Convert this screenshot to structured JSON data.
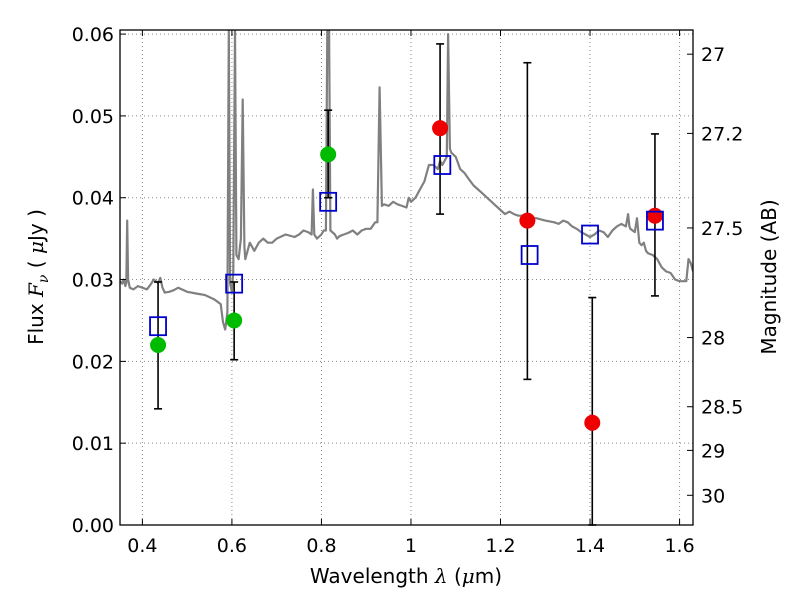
{
  "chart_data": {
    "type": "scatter",
    "xlabel": "Wavelength  λ (μm)",
    "xlabel_parts": {
      "pre": "Wavelength  ",
      "sym": "λ",
      "mid": " (",
      "unit_sym": "μ",
      "post": "m)"
    },
    "ylabel": "Flux  F_ν  ( μJy )",
    "ylabel_parts": {
      "pre": "Flux  ",
      "sym": "F",
      "sub": "ν",
      "mid": "  ( ",
      "unit_sym": "μ",
      "post": "Jy )"
    },
    "y2label": "Magnitude (AB)",
    "xlim": [
      0.35,
      1.63
    ],
    "ylim": [
      0.0,
      0.0605
    ],
    "x_ticks": [
      0.4,
      0.6,
      0.8,
      1.0,
      1.2,
      1.4,
      1.6
    ],
    "x_tick_labels": [
      "0.4",
      "0.6",
      "0.8",
      "1",
      "1.2",
      "1.4",
      "1.6"
    ],
    "y_ticks": [
      0.0,
      0.01,
      0.02,
      0.03,
      0.04,
      0.05,
      0.06
    ],
    "y_tick_labels": [
      "0.00",
      "0.01",
      "0.02",
      "0.03",
      "0.04",
      "0.05",
      "0.06"
    ],
    "y2_ticks": [
      27,
      27.2,
      27.5,
      28,
      28.5,
      29,
      30
    ],
    "y2_tick_labels": [
      "27",
      "27.2",
      "27.5",
      "28",
      "28.5",
      "29",
      "30"
    ],
    "grid": true,
    "colors": {
      "sed_line": "#808080",
      "observed_optical": "#00bb00",
      "observed_nir": "#ee0000",
      "model": "#0000cc",
      "errorbar": "#000000",
      "grid": "#888888"
    },
    "series": [
      {
        "kind": "line",
        "points": [
          [
            0.35,
            0.0298
          ],
          [
            0.355,
            0.0295
          ],
          [
            0.358,
            0.03
          ],
          [
            0.36,
            0.0296
          ],
          [
            0.362,
            0.0292
          ],
          [
            0.364,
            0.0296
          ],
          [
            0.366,
            0.0372
          ],
          [
            0.368,
            0.03
          ],
          [
            0.372,
            0.029
          ],
          [
            0.38,
            0.0288
          ],
          [
            0.39,
            0.0292
          ],
          [
            0.4,
            0.029
          ],
          [
            0.41,
            0.0288
          ],
          [
            0.42,
            0.0295
          ],
          [
            0.425,
            0.03
          ],
          [
            0.43,
            0.0298
          ],
          [
            0.435,
            0.0296
          ],
          [
            0.44,
            0.0302
          ],
          [
            0.445,
            0.029
          ],
          [
            0.45,
            0.0284
          ],
          [
            0.46,
            0.0285
          ],
          [
            0.47,
            0.0287
          ],
          [
            0.48,
            0.029
          ],
          [
            0.5,
            0.0285
          ],
          [
            0.52,
            0.0283
          ],
          [
            0.54,
            0.0281
          ],
          [
            0.56,
            0.0276
          ],
          [
            0.575,
            0.027
          ],
          [
            0.58,
            0.0248
          ],
          [
            0.585,
            0.0239
          ],
          [
            0.59,
            0.026
          ],
          [
            0.593,
            0.0605
          ],
          [
            0.596,
            0.0295
          ],
          [
            0.6,
            0.0285
          ],
          [
            0.603,
            0.031
          ],
          [
            0.607,
            0.0605
          ],
          [
            0.61,
            0.033
          ],
          [
            0.615,
            0.0325
          ],
          [
            0.62,
            0.035
          ],
          [
            0.624,
            0.052
          ],
          [
            0.628,
            0.034
          ],
          [
            0.63,
            0.0325
          ],
          [
            0.64,
            0.0345
          ],
          [
            0.65,
            0.0335
          ],
          [
            0.66,
            0.0345
          ],
          [
            0.67,
            0.035
          ],
          [
            0.68,
            0.0345
          ],
          [
            0.69,
            0.0345
          ],
          [
            0.7,
            0.035
          ],
          [
            0.72,
            0.0355
          ],
          [
            0.74,
            0.0352
          ],
          [
            0.75,
            0.0355
          ],
          [
            0.76,
            0.036
          ],
          [
            0.77,
            0.0358
          ],
          [
            0.778,
            0.0355
          ],
          [
            0.781,
            0.041
          ],
          [
            0.784,
            0.0355
          ],
          [
            0.79,
            0.035
          ],
          [
            0.8,
            0.0355
          ],
          [
            0.805,
            0.036
          ],
          [
            0.81,
            0.036
          ],
          [
            0.813,
            0.0605
          ],
          [
            0.817,
            0.0605
          ],
          [
            0.82,
            0.036
          ],
          [
            0.83,
            0.0355
          ],
          [
            0.835,
            0.035
          ],
          [
            0.84,
            0.0353
          ],
          [
            0.85,
            0.0355
          ],
          [
            0.86,
            0.0357
          ],
          [
            0.87,
            0.036
          ],
          [
            0.88,
            0.0355
          ],
          [
            0.89,
            0.036
          ],
          [
            0.9,
            0.0362
          ],
          [
            0.91,
            0.0362
          ],
          [
            0.92,
            0.037
          ],
          [
            0.925,
            0.037
          ],
          [
            0.93,
            0.0535
          ],
          [
            0.935,
            0.039
          ],
          [
            0.94,
            0.0392
          ],
          [
            0.95,
            0.039
          ],
          [
            0.96,
            0.0395
          ],
          [
            0.97,
            0.0392
          ],
          [
            0.98,
            0.039
          ],
          [
            0.99,
            0.0388
          ],
          [
            0.995,
            0.04
          ],
          [
            1.0,
            0.0395
          ],
          [
            1.01,
            0.04
          ],
          [
            1.02,
            0.041
          ],
          [
            1.03,
            0.042
          ],
          [
            1.04,
            0.044
          ],
          [
            1.05,
            0.044
          ],
          [
            1.06,
            0.0435
          ],
          [
            1.065,
            0.0445
          ],
          [
            1.07,
            0.044
          ],
          [
            1.08,
            0.045
          ],
          [
            1.083,
            0.06
          ],
          [
            1.087,
            0.046
          ],
          [
            1.09,
            0.0455
          ],
          [
            1.1,
            0.045
          ],
          [
            1.11,
            0.0435
          ],
          [
            1.12,
            0.043
          ],
          [
            1.13,
            0.0422
          ],
          [
            1.14,
            0.0415
          ],
          [
            1.15,
            0.041
          ],
          [
            1.16,
            0.0405
          ],
          [
            1.17,
            0.04
          ],
          [
            1.18,
            0.0395
          ],
          [
            1.19,
            0.039
          ],
          [
            1.2,
            0.0385
          ],
          [
            1.21,
            0.038
          ],
          [
            1.22,
            0.0383
          ],
          [
            1.23,
            0.038
          ],
          [
            1.24,
            0.0378
          ],
          [
            1.25,
            0.0378
          ],
          [
            1.26,
            0.0375
          ],
          [
            1.28,
            0.0375
          ],
          [
            1.3,
            0.0372
          ],
          [
            1.32,
            0.037
          ],
          [
            1.33,
            0.0368
          ],
          [
            1.34,
            0.0372
          ],
          [
            1.35,
            0.037
          ],
          [
            1.36,
            0.0365
          ],
          [
            1.37,
            0.0362
          ],
          [
            1.38,
            0.0358
          ],
          [
            1.39,
            0.0355
          ],
          [
            1.4,
            0.0352
          ],
          [
            1.41,
            0.0355
          ],
          [
            1.42,
            0.036
          ],
          [
            1.43,
            0.0358
          ],
          [
            1.44,
            0.0352
          ],
          [
            1.45,
            0.036
          ],
          [
            1.46,
            0.0365
          ],
          [
            1.47,
            0.0368
          ],
          [
            1.48,
            0.0365
          ],
          [
            1.485,
            0.038
          ],
          [
            1.488,
            0.0365
          ],
          [
            1.49,
            0.0362
          ],
          [
            1.5,
            0.0358
          ],
          [
            1.505,
            0.0375
          ],
          [
            1.51,
            0.0345
          ],
          [
            1.515,
            0.0342
          ],
          [
            1.52,
            0.0345
          ],
          [
            1.525,
            0.0335
          ],
          [
            1.53,
            0.0332
          ],
          [
            1.54,
            0.033
          ],
          [
            1.55,
            0.0325
          ],
          [
            1.56,
            0.0315
          ],
          [
            1.57,
            0.031
          ],
          [
            1.58,
            0.0308
          ],
          [
            1.59,
            0.03
          ],
          [
            1.6,
            0.0298
          ],
          [
            1.61,
            0.0298
          ],
          [
            1.615,
            0.0298
          ],
          [
            1.62,
            0.0325
          ],
          [
            1.625,
            0.032
          ],
          [
            1.63,
            0.031
          ]
        ]
      },
      {
        "kind": "errorbars",
        "points": [
          {
            "x": 0.435,
            "lo": 0.0142,
            "hi": 0.0297
          },
          {
            "x": 0.605,
            "lo": 0.0202,
            "hi": 0.0297
          },
          {
            "x": 0.815,
            "lo": 0.04,
            "hi": 0.0507
          },
          {
            "x": 1.065,
            "lo": 0.038,
            "hi": 0.0588
          },
          {
            "x": 1.26,
            "lo": 0.0178,
            "hi": 0.0565
          },
          {
            "x": 1.405,
            "lo": 0.0,
            "hi": 0.0278
          },
          {
            "x": 1.545,
            "lo": 0.028,
            "hi": 0.0478
          }
        ]
      },
      {
        "kind": "observed_optical",
        "points": [
          [
            0.435,
            0.022
          ],
          [
            0.605,
            0.025
          ],
          [
            0.815,
            0.0453
          ]
        ]
      },
      {
        "kind": "observed_nir",
        "points": [
          [
            1.065,
            0.0485
          ],
          [
            1.26,
            0.0372
          ],
          [
            1.405,
            0.0125
          ],
          [
            1.545,
            0.0378
          ]
        ]
      },
      {
        "kind": "model",
        "points": [
          [
            0.435,
            0.0243
          ],
          [
            0.605,
            0.0295
          ],
          [
            0.815,
            0.0395
          ],
          [
            1.07,
            0.044
          ],
          [
            1.265,
            0.033
          ],
          [
            1.4,
            0.0355
          ],
          [
            1.545,
            0.0372
          ]
        ]
      }
    ]
  }
}
